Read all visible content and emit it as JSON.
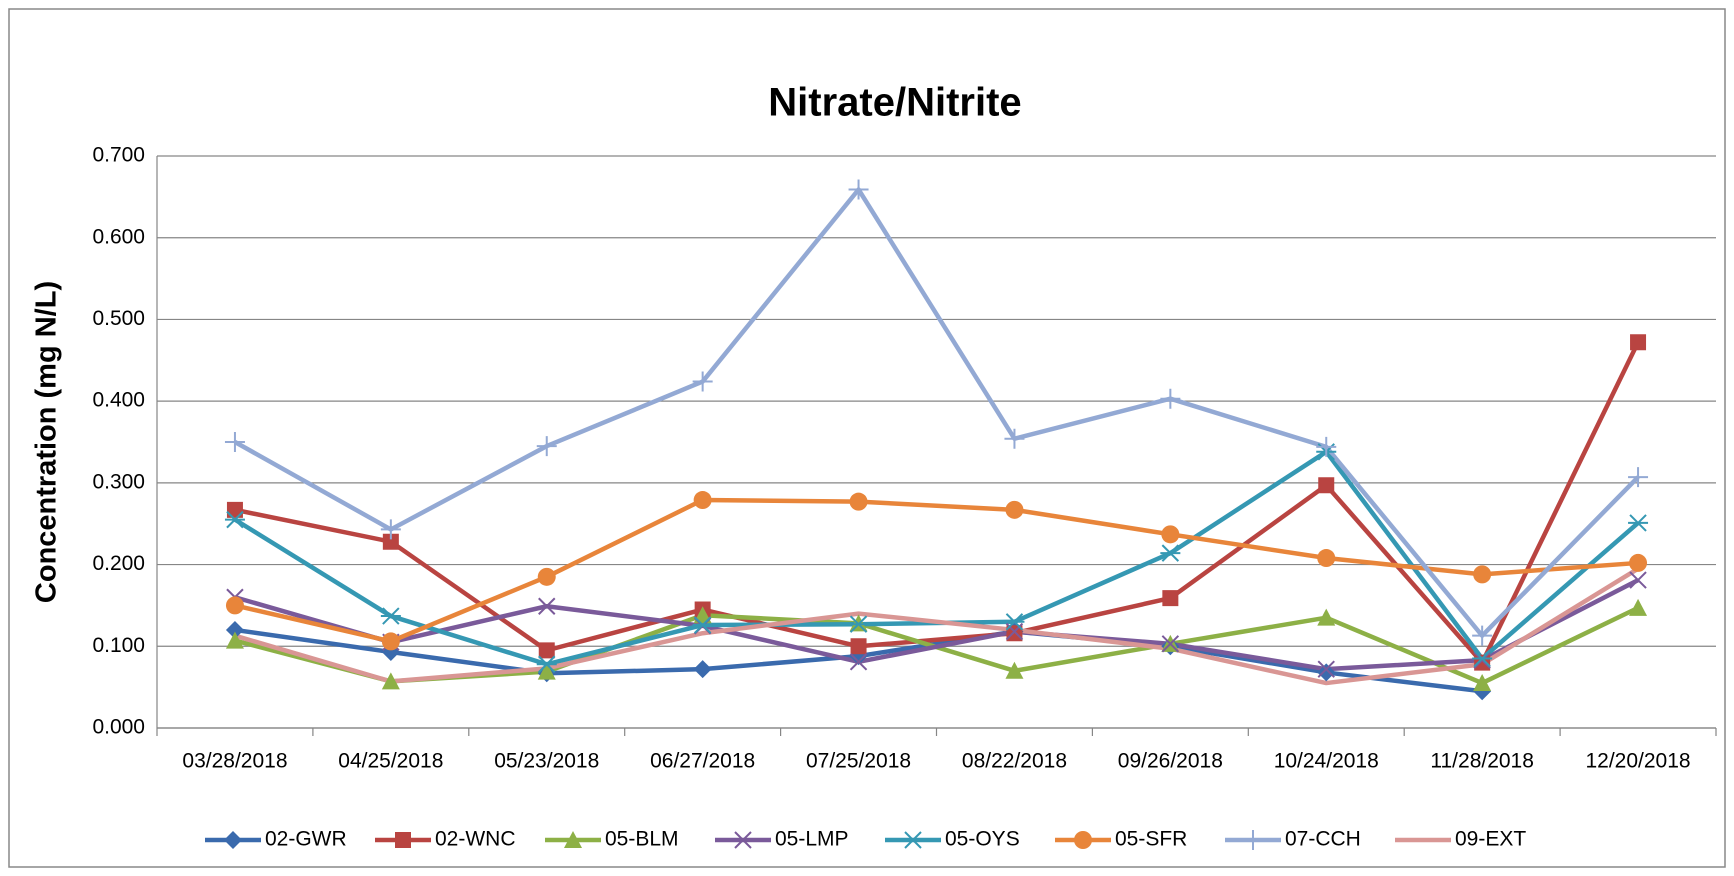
{
  "chart_data": {
    "type": "line",
    "title": "Nitrate/Nitrite",
    "y_label": "Concentration (mg N/L)",
    "categories": [
      "03/28/2018",
      "04/25/2018",
      "05/23/2018",
      "06/27/2018",
      "07/25/2018",
      "08/22/2018",
      "09/26/2018",
      "10/24/2018",
      "11/28/2018",
      "12/20/2018"
    ],
    "ylim": [
      0,
      0.7
    ],
    "yticks": [
      {
        "value": 0,
        "label": "0.000"
      },
      {
        "value": 0.1,
        "label": "0.100"
      },
      {
        "value": 0.2,
        "label": "0.200"
      },
      {
        "value": 0.3,
        "label": "0.300"
      },
      {
        "value": 0.4,
        "label": "0.400"
      },
      {
        "value": 0.5,
        "label": "0.500"
      },
      {
        "value": 0.6,
        "label": "0.600"
      },
      {
        "value": 0.7,
        "label": "0.700"
      }
    ],
    "grid": true,
    "legend": "bottom",
    "series": [
      {
        "name": "02-GWR",
        "color": "#3a6aad",
        "marker": "diamond",
        "values": [
          0.12,
          0.093,
          0.067,
          0.072,
          0.088,
          0.118,
          0.1,
          0.068,
          0.045,
          null
        ]
      },
      {
        "name": "02-WNC",
        "color": "#b94441",
        "marker": "square",
        "values": [
          0.267,
          0.228,
          0.095,
          0.145,
          0.1,
          0.116,
          0.159,
          0.297,
          0.08,
          0.472
        ]
      },
      {
        "name": "05-BLM",
        "color": "#8db046",
        "marker": "triangle",
        "values": [
          0.107,
          0.057,
          0.069,
          0.138,
          0.128,
          0.07,
          0.103,
          0.135,
          0.055,
          0.147
        ]
      },
      {
        "name": "05-LMP",
        "color": "#7a5a9a",
        "marker": "x",
        "values": [
          0.16,
          0.105,
          0.149,
          0.125,
          0.081,
          0.118,
          0.103,
          0.072,
          0.083,
          0.181
        ]
      },
      {
        "name": "05-OYS",
        "color": "#3598b3",
        "marker": "star",
        "values": [
          0.255,
          0.137,
          0.078,
          0.126,
          0.127,
          0.13,
          0.214,
          0.338,
          0.085,
          0.251
        ]
      },
      {
        "name": "05-SFR",
        "color": "#e8853a",
        "marker": "circle",
        "values": [
          0.15,
          0.106,
          0.185,
          0.279,
          0.277,
          0.267,
          0.237,
          0.208,
          0.188,
          0.202
        ]
      },
      {
        "name": "07-CCH",
        "color": "#93a9d4",
        "marker": "plus",
        "values": [
          0.35,
          0.243,
          0.345,
          0.424,
          0.659,
          0.354,
          0.403,
          0.344,
          0.113,
          0.307
        ]
      },
      {
        "name": "09-EXT",
        "color": "#d99694",
        "marker": "none",
        "values": [
          0.113,
          0.057,
          0.073,
          0.116,
          0.14,
          0.12,
          0.097,
          0.055,
          0.078,
          0.195
        ]
      }
    ]
  }
}
